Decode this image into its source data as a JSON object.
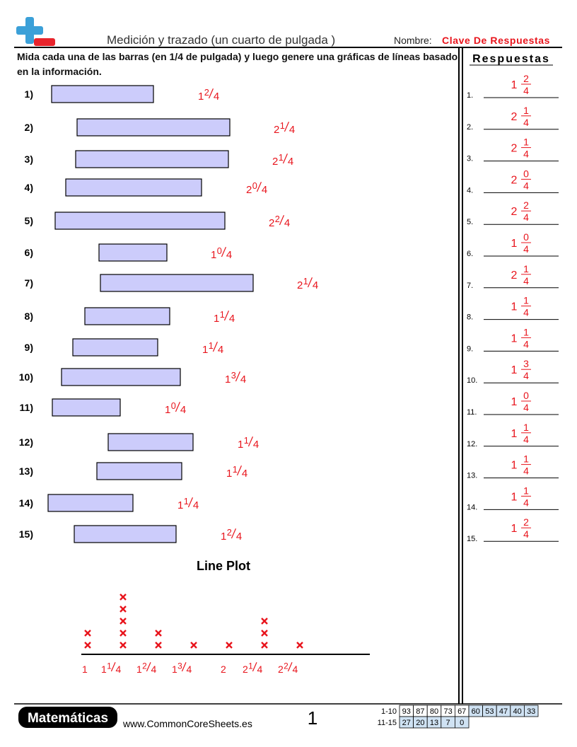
{
  "header": {
    "title": "Medición y trazado (un cuarto de pulgada )",
    "name_label": "Nombre:",
    "name_value": "Clave De Respuestas",
    "instructions": "Mida cada una de las barras (en 1/4 de pulgada) y luego genere una gráficas de líneas basado en la información.",
    "answers_title": "Respuestas"
  },
  "questions": [
    {
      "label": "1)",
      "answer_label": "1.",
      "whole": "1",
      "num": "2",
      "den": "4"
    },
    {
      "label": "2)",
      "answer_label": "2.",
      "whole": "2",
      "num": "1",
      "den": "4"
    },
    {
      "label": "3)",
      "answer_label": "3.",
      "whole": "2",
      "num": "1",
      "den": "4"
    },
    {
      "label": "4)",
      "answer_label": "4.",
      "whole": "2",
      "num": "0",
      "den": "4"
    },
    {
      "label": "5)",
      "answer_label": "5.",
      "whole": "2",
      "num": "2",
      "den": "4"
    },
    {
      "label": "6)",
      "answer_label": "6.",
      "whole": "1",
      "num": "0",
      "den": "4"
    },
    {
      "label": "7)",
      "answer_label": "7.",
      "whole": "2",
      "num": "1",
      "den": "4"
    },
    {
      "label": "8)",
      "answer_label": "8.",
      "whole": "1",
      "num": "1",
      "den": "4"
    },
    {
      "label": "9)",
      "answer_label": "9.",
      "whole": "1",
      "num": "1",
      "den": "4"
    },
    {
      "label": "10)",
      "answer_label": "10.",
      "whole": "1",
      "num": "3",
      "den": "4"
    },
    {
      "label": "11)",
      "answer_label": "11.",
      "whole": "1",
      "num": "0",
      "den": "4"
    },
    {
      "label": "12)",
      "answer_label": "12.",
      "whole": "1",
      "num": "1",
      "den": "4"
    },
    {
      "label": "13)",
      "answer_label": "13.",
      "whole": "1",
      "num": "1",
      "den": "4"
    },
    {
      "label": "14)",
      "answer_label": "14.",
      "whole": "1",
      "num": "1",
      "den": "4"
    },
    {
      "label": "15)",
      "answer_label": "15.",
      "whole": "1",
      "num": "2",
      "den": "4"
    }
  ],
  "line_plot": {
    "title": "Line Plot",
    "categories": [
      {
        "whole": "1",
        "counts": 2
      },
      {
        "whole": "1",
        "num": "1",
        "den": "4",
        "counts": 5
      },
      {
        "whole": "1",
        "num": "2",
        "den": "4",
        "counts": 2
      },
      {
        "whole": "1",
        "num": "3",
        "den": "4",
        "counts": 1
      },
      {
        "whole": "2",
        "counts": 1
      },
      {
        "whole": "2",
        "num": "1",
        "den": "4",
        "counts": 3
      },
      {
        "whole": "2",
        "num": "2",
        "den": "4",
        "counts": 1
      }
    ]
  },
  "footer": {
    "brand": "Matemáticas",
    "url": "www.CommonCoreSheets.es",
    "page": "1",
    "score_rows": [
      {
        "label": "1-10",
        "cells": [
          "93",
          "87",
          "80",
          "73",
          "67",
          "60",
          "53",
          "47",
          "40",
          "33"
        ]
      },
      {
        "label": "11-15",
        "cells": [
          "27",
          "20",
          "13",
          "7",
          "0"
        ]
      }
    ]
  }
}
